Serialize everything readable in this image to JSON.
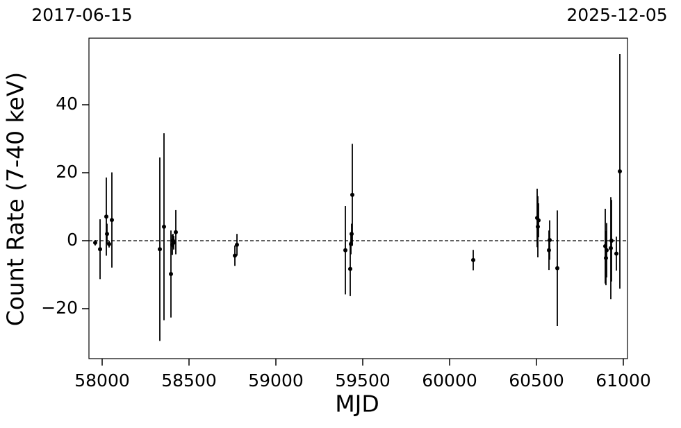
{
  "chart_data": {
    "type": "scatter",
    "top_left_label": "2017-06-15",
    "top_right_label": "2025-12-05",
    "xlabel": "MJD",
    "ylabel": "Count Rate (7-40 keV)",
    "x": [
      57960,
      57988,
      58024,
      58028,
      58040,
      58056,
      58332,
      58356,
      58396,
      58404,
      58408,
      58412,
      58424,
      58764,
      58776,
      59400,
      59428,
      59432,
      59436,
      59440,
      60136,
      60504,
      60508,
      60512,
      60576,
      60572,
      60620,
      60896,
      60900,
      60904,
      60928,
      60932,
      60960,
      60980
    ],
    "values": [
      -0.6,
      -2.5,
      7.1,
      2.0,
      -1.0,
      6.1,
      -2.5,
      4.1,
      -9.8,
      -1.2,
      0.0,
      -0.6,
      2.5,
      -4.4,
      -1.2,
      -2.8,
      -8.3,
      -1.0,
      2.0,
      13.5,
      -5.7,
      6.7,
      4.1,
      6.0,
      0.2,
      -2.8,
      -8.1,
      -1.6,
      -5.1,
      -2.8,
      -2.2,
      0.0,
      -3.8,
      20.4
    ],
    "errors": [
      0.8,
      8.8,
      11.5,
      3.0,
      1.0,
      14.0,
      27.0,
      27.5,
      12.8,
      3.0,
      2.0,
      2.0,
      6.5,
      3.0,
      3.2,
      13.0,
      8.0,
      3.0,
      3.0,
      15.0,
      3.0,
      8.6,
      9.0,
      5.0,
      5.8,
      5.8,
      17.0,
      11.0,
      8.0,
      8.0,
      15.0,
      12.0,
      5.0,
      34.5
    ],
    "color": "#000000",
    "hline": 0,
    "xlim": [
      57924,
      61024
    ],
    "ylim": [
      -34.7,
      59.6
    ],
    "xticks": [
      58000,
      58500,
      59000,
      59500,
      60000,
      60500,
      61000
    ],
    "yticks": [
      {
        "value": -20,
        "label": "−20"
      },
      0,
      20,
      40
    ]
  }
}
